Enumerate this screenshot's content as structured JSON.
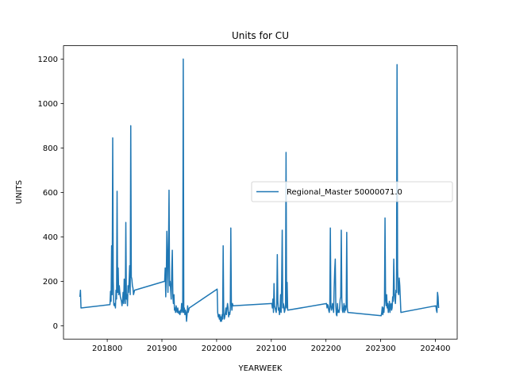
{
  "chart_data": {
    "type": "line",
    "title": "Units for CU",
    "xlabel": "YEARWEEK",
    "ylabel": "UNITS",
    "xlim": [
      201720,
      202440
    ],
    "ylim": [
      -60,
      1260
    ],
    "x_ticks": [
      201800,
      201900,
      202000,
      202100,
      202200,
      202300,
      202400
    ],
    "y_ticks": [
      0,
      200,
      400,
      600,
      800,
      1000,
      1200
    ],
    "grid": false,
    "legend_position": "center-right",
    "series": [
      {
        "name": "Regional_Master 50000071.0",
        "color": "#1f77b4",
        "points": [
          [
            201750,
            130
          ],
          [
            201751,
            160
          ],
          [
            201752,
            80
          ],
          [
            201805,
            95
          ],
          [
            201806,
            155
          ],
          [
            201807,
            110
          ],
          [
            201808,
            360
          ],
          [
            201809,
            140
          ],
          [
            201810,
            845
          ],
          [
            201811,
            200
          ],
          [
            201812,
            95
          ],
          [
            201813,
            90
          ],
          [
            201814,
            100
          ],
          [
            201815,
            80
          ],
          [
            201816,
            160
          ],
          [
            201817,
            120
          ],
          [
            201818,
            605
          ],
          [
            201819,
            150
          ],
          [
            201820,
            260
          ],
          [
            201821,
            140
          ],
          [
            201822,
            180
          ],
          [
            201823,
            150
          ],
          [
            201824,
            130
          ],
          [
            201825,
            120
          ],
          [
            201826,
            110
          ],
          [
            201827,
            90
          ],
          [
            201828,
            110
          ],
          [
            201829,
            150
          ],
          [
            201830,
            100
          ],
          [
            201831,
            210
          ],
          [
            201832,
            130
          ],
          [
            201833,
            100
          ],
          [
            201834,
            465
          ],
          [
            201835,
            120
          ],
          [
            201836,
            140
          ],
          [
            201837,
            90
          ],
          [
            201838,
            180
          ],
          [
            201839,
            150
          ],
          [
            201840,
            200
          ],
          [
            201841,
            270
          ],
          [
            201842,
            140
          ],
          [
            201843,
            900
          ],
          [
            201844,
            220
          ],
          [
            201845,
            210
          ],
          [
            201846,
            180
          ],
          [
            201847,
            170
          ],
          [
            201848,
            140
          ],
          [
            201849,
            150
          ],
          [
            201850,
            160
          ],
          [
            201905,
            200
          ],
          [
            201906,
            260
          ],
          [
            201907,
            130
          ],
          [
            201908,
            220
          ],
          [
            201909,
            425
          ],
          [
            201910,
            320
          ],
          [
            201911,
            150
          ],
          [
            201912,
            340
          ],
          [
            201913,
            610
          ],
          [
            201914,
            180
          ],
          [
            201915,
            200
          ],
          [
            201916,
            160
          ],
          [
            201917,
            120
          ],
          [
            201918,
            250
          ],
          [
            201919,
            340
          ],
          [
            201920,
            130
          ],
          [
            201921,
            100
          ],
          [
            201922,
            140
          ],
          [
            201923,
            70
          ],
          [
            201924,
            80
          ],
          [
            201925,
            60
          ],
          [
            201926,
            90
          ],
          [
            201927,
            70
          ],
          [
            201928,
            60
          ],
          [
            201929,
            80
          ],
          [
            201930,
            60
          ],
          [
            201931,
            55
          ],
          [
            201932,
            65
          ],
          [
            201933,
            50
          ],
          [
            201934,
            70
          ],
          [
            201935,
            60
          ],
          [
            201936,
            100
          ],
          [
            201937,
            70
          ],
          [
            201938,
            60
          ],
          [
            201939,
            1200
          ],
          [
            201940,
            60
          ],
          [
            201941,
            80
          ],
          [
            201942,
            50
          ],
          [
            201943,
            70
          ],
          [
            201944,
            60
          ],
          [
            201945,
            20
          ],
          [
            201946,
            50
          ],
          [
            201947,
            90
          ],
          [
            201948,
            60
          ],
          [
            201949,
            70
          ],
          [
            201950,
            80
          ],
          [
            202001,
            165
          ],
          [
            202002,
            60
          ],
          [
            202003,
            40
          ],
          [
            202004,
            50
          ],
          [
            202005,
            30
          ],
          [
            202006,
            50
          ],
          [
            202007,
            20
          ],
          [
            202008,
            40
          ],
          [
            202009,
            20
          ],
          [
            202010,
            50
          ],
          [
            202011,
            30
          ],
          [
            202012,
            360
          ],
          [
            202013,
            60
          ],
          [
            202014,
            30
          ],
          [
            202015,
            40
          ],
          [
            202016,
            60
          ],
          [
            202017,
            80
          ],
          [
            202018,
            50
          ],
          [
            202019,
            80
          ],
          [
            202020,
            100
          ],
          [
            202021,
            80
          ],
          [
            202022,
            40
          ],
          [
            202023,
            60
          ],
          [
            202024,
            50
          ],
          [
            202025,
            70
          ],
          [
            202026,
            440
          ],
          [
            202027,
            100
          ],
          [
            202028,
            70
          ],
          [
            202029,
            100
          ],
          [
            202030,
            90
          ],
          [
            202101,
            100
          ],
          [
            202102,
            80
          ],
          [
            202103,
            120
          ],
          [
            202104,
            60
          ],
          [
            202105,
            190
          ],
          [
            202106,
            90
          ],
          [
            202107,
            80
          ],
          [
            202108,
            70
          ],
          [
            202109,
            60
          ],
          [
            202110,
            100
          ],
          [
            202111,
            320
          ],
          [
            202112,
            110
          ],
          [
            202113,
            70
          ],
          [
            202114,
            80
          ],
          [
            202115,
            50
          ],
          [
            202116,
            70
          ],
          [
            202117,
            140
          ],
          [
            202118,
            60
          ],
          [
            202119,
            200
          ],
          [
            202120,
            430
          ],
          [
            202121,
            80
          ],
          [
            202122,
            100
          ],
          [
            202123,
            90
          ],
          [
            202124,
            60
          ],
          [
            202125,
            70
          ],
          [
            202126,
            90
          ],
          [
            202127,
            780
          ],
          [
            202128,
            80
          ],
          [
            202129,
            195
          ],
          [
            202130,
            70
          ],
          [
            202201,
            100
          ],
          [
            202202,
            80
          ],
          [
            202203,
            95
          ],
          [
            202204,
            90
          ],
          [
            202205,
            70
          ],
          [
            202206,
            60
          ],
          [
            202207,
            80
          ],
          [
            202208,
            440
          ],
          [
            202209,
            90
          ],
          [
            202210,
            70
          ],
          [
            202211,
            80
          ],
          [
            202212,
            100
          ],
          [
            202213,
            80
          ],
          [
            202214,
            60
          ],
          [
            202215,
            170
          ],
          [
            202216,
            250
          ],
          [
            202217,
            300
          ],
          [
            202218,
            90
          ],
          [
            202219,
            50
          ],
          [
            202220,
            45
          ],
          [
            202221,
            100
          ],
          [
            202222,
            60
          ],
          [
            202223,
            70
          ],
          [
            202224,
            60
          ],
          [
            202225,
            80
          ],
          [
            202226,
            120
          ],
          [
            202227,
            130
          ],
          [
            202228,
            430
          ],
          [
            202229,
            120
          ],
          [
            202230,
            70
          ],
          [
            202231,
            60
          ],
          [
            202232,
            80
          ],
          [
            202233,
            100
          ],
          [
            202234,
            60
          ],
          [
            202235,
            90
          ],
          [
            202236,
            70
          ],
          [
            202237,
            90
          ],
          [
            202238,
            420
          ],
          [
            202239,
            80
          ],
          [
            202240,
            60
          ],
          [
            202301,
            45
          ],
          [
            202302,
            60
          ],
          [
            202303,
            85
          ],
          [
            202304,
            50
          ],
          [
            202305,
            80
          ],
          [
            202306,
            60
          ],
          [
            202307,
            100
          ],
          [
            202308,
            485
          ],
          [
            202309,
            120
          ],
          [
            202310,
            90
          ],
          [
            202311,
            140
          ],
          [
            202312,
            80
          ],
          [
            202313,
            100
          ],
          [
            202314,
            60
          ],
          [
            202315,
            80
          ],
          [
            202316,
            110
          ],
          [
            202317,
            60
          ],
          [
            202318,
            90
          ],
          [
            202319,
            100
          ],
          [
            202320,
            70
          ],
          [
            202321,
            80
          ],
          [
            202322,
            130
          ],
          [
            202323,
            110
          ],
          [
            202324,
            300
          ],
          [
            202325,
            150
          ],
          [
            202326,
            120
          ],
          [
            202327,
            100
          ],
          [
            202328,
            160
          ],
          [
            202329,
            150
          ],
          [
            202330,
            1175
          ],
          [
            202331,
            260
          ],
          [
            202332,
            150
          ],
          [
            202333,
            140
          ],
          [
            202334,
            215
          ],
          [
            202335,
            180
          ],
          [
            202336,
            120
          ],
          [
            202337,
            60
          ],
          [
            202401,
            90
          ],
          [
            202402,
            70
          ],
          [
            202403,
            60
          ],
          [
            202404,
            150
          ],
          [
            202405,
            130
          ],
          [
            202406,
            80
          ]
        ]
      }
    ]
  }
}
